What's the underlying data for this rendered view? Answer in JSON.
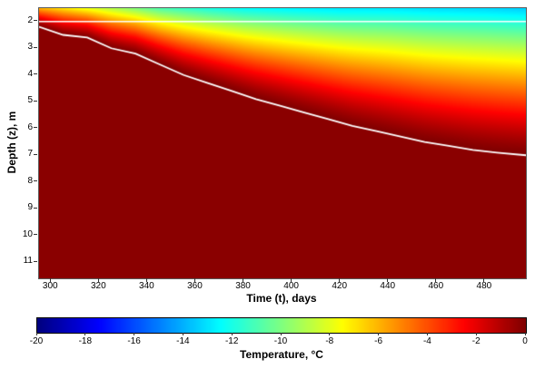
{
  "axes": {
    "x_label": "Time (t), days",
    "y_label": "Depth (z), m",
    "colorbar_label": "Temperature, °C"
  },
  "chart_data": {
    "type": "heatmap",
    "title": "",
    "xlabel": "Time (t), days",
    "ylabel": "Depth (z), m",
    "zlabel": "Temperature, °C",
    "colormap": "jet",
    "x_range": [
      295,
      497
    ],
    "y_range": [
      1.5,
      11.6
    ],
    "y_inverted": true,
    "z_range": [
      -20,
      0
    ],
    "x_ticks": [
      300,
      320,
      340,
      360,
      380,
      400,
      420,
      440,
      460,
      480
    ],
    "y_ticks": [
      2,
      3,
      4,
      5,
      6,
      7,
      8,
      9,
      10,
      11
    ],
    "colorbar_ticks": [
      -20,
      -18,
      -16,
      -14,
      -12,
      -10,
      -8,
      -6,
      -4,
      -2,
      0
    ],
    "deep_temperature_c": -0.2,
    "profile_exponent": 1.3,
    "surface_temperature_c": {
      "days": [
        295,
        305,
        315,
        325,
        335,
        345,
        355,
        365,
        380,
        400,
        420,
        440,
        460,
        480,
        497
      ],
      "values": [
        -6,
        -7,
        -8,
        -9,
        -10,
        -11,
        -11.5,
        -12,
        -12.5,
        -12.8,
        -13,
        -13,
        -13.2,
        -13.3,
        -13.5
      ]
    },
    "freezing_front_line": {
      "days": [
        295,
        305,
        315,
        325,
        335,
        345,
        355,
        365,
        375,
        385,
        395,
        405,
        415,
        425,
        435,
        445,
        455,
        465,
        475,
        485,
        497
      ],
      "depth_m": [
        2.2,
        2.5,
        2.6,
        3.0,
        3.2,
        3.6,
        4.0,
        4.3,
        4.6,
        4.9,
        5.15,
        5.4,
        5.65,
        5.9,
        6.1,
        6.3,
        6.5,
        6.65,
        6.8,
        6.9,
        7.0
      ]
    },
    "surface_interface_line_depth_m": 2.0,
    "line_color": "#ffffff",
    "sampled_temperatures_c": {
      "days": [
        300,
        340,
        380,
        420,
        460,
        495
      ],
      "depths_m": [
        2,
        3,
        4,
        5,
        6,
        7,
        8,
        10
      ],
      "values": [
        [
          -2.0,
          -0.2,
          -0.2,
          -0.2,
          -0.2,
          -0.2,
          -0.2,
          -0.2
        ],
        [
          -7.1,
          -1.4,
          -0.2,
          -0.2,
          -0.2,
          -0.2,
          -0.2,
          -0.2
        ],
        [
          -10.1,
          -5.8,
          -2.1,
          -0.2,
          -0.2,
          -0.2,
          -0.2,
          -0.2
        ],
        [
          -11.1,
          -7.4,
          -4.1,
          -1.4,
          -0.2,
          -0.2,
          -0.2,
          -0.2
        ],
        [
          -11.5,
          -8.4,
          -5.5,
          -2.9,
          -0.8,
          -0.2,
          -0.2,
          -0.2
        ],
        [
          -11.9,
          -8.9,
          -6.1,
          -3.6,
          -1.4,
          -0.2,
          -0.2,
          -0.2
        ]
      ]
    }
  }
}
